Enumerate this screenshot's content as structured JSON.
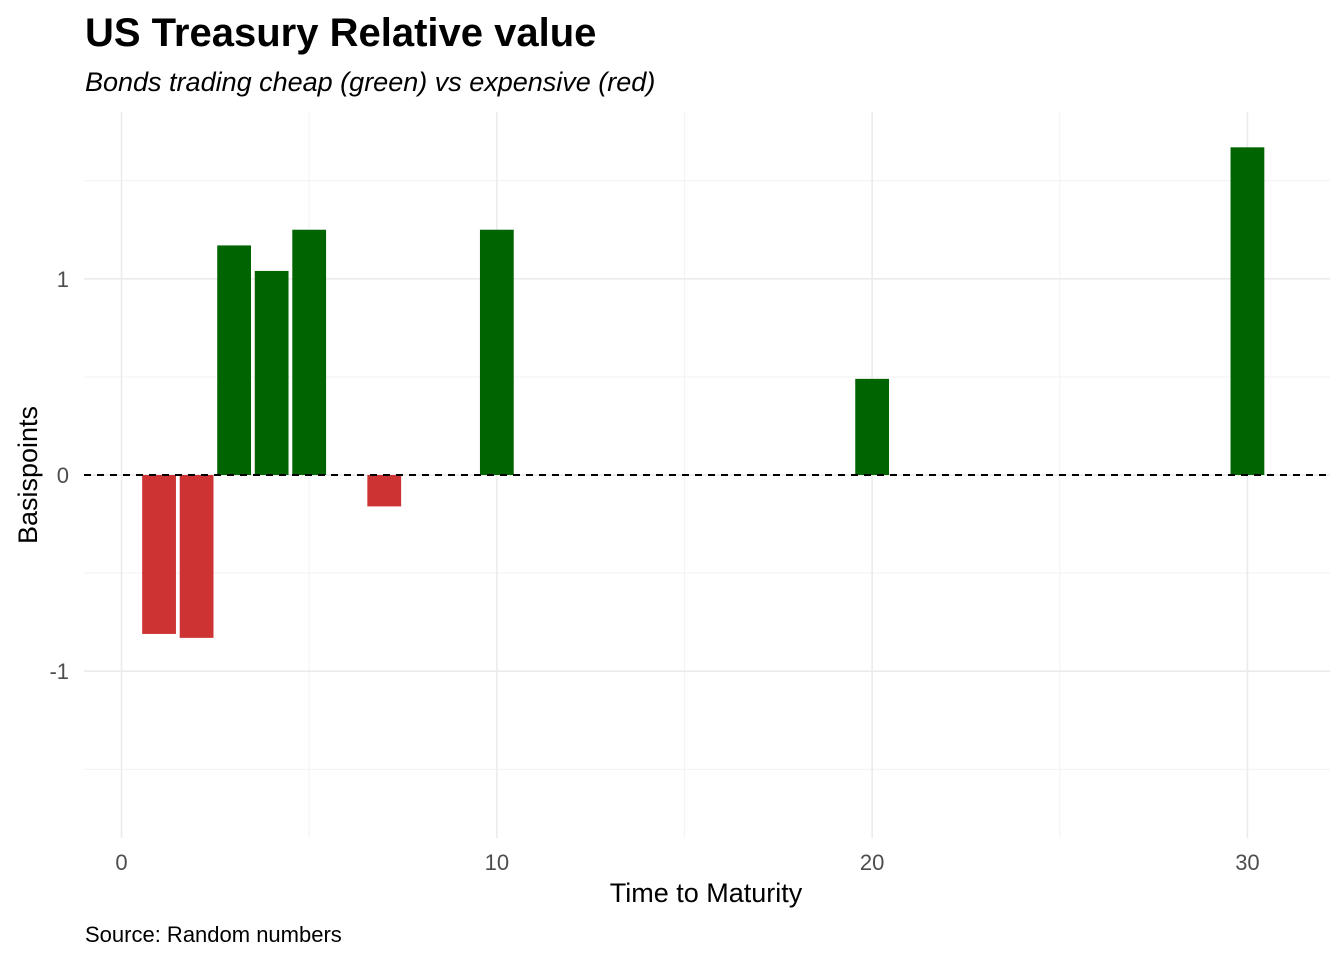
{
  "chart_data": {
    "type": "bar",
    "title": "US Treasury Relative value",
    "subtitle": "Bonds trading cheap (green) vs expensive (red)",
    "xlabel": "Time to Maturity",
    "ylabel": "Basispoints",
    "caption": "Source: Random numbers",
    "xlim": [
      -1,
      32.2
    ],
    "ylim": [
      -1.85,
      1.85
    ],
    "xticks": [
      0,
      10,
      20,
      30
    ],
    "xtick_labels": [
      "0",
      "10",
      "20",
      "30"
    ],
    "yticks": [
      -1,
      0,
      1
    ],
    "ytick_labels": [
      "-1",
      "0",
      "1"
    ],
    "x_minor_ticks": [
      5,
      15,
      25
    ],
    "y_minor_ticks": [
      -1.5,
      -0.5,
      0.5,
      1.5
    ],
    "bar_width": 0.9,
    "positive_color": "#006400",
    "negative_color": "#cd3333",
    "reference_line": {
      "y": 0,
      "style": "dashed"
    },
    "grid": true,
    "legend": "none",
    "bars": [
      {
        "x": 1,
        "y": -0.81
      },
      {
        "x": 2,
        "y": -0.83
      },
      {
        "x": 3,
        "y": 1.17
      },
      {
        "x": 4,
        "y": 1.04
      },
      {
        "x": 5,
        "y": 1.25
      },
      {
        "x": 7,
        "y": -0.16
      },
      {
        "x": 10,
        "y": 1.25
      },
      {
        "x": 20,
        "y": 0.49
      },
      {
        "x": 30,
        "y": 1.67
      }
    ]
  }
}
